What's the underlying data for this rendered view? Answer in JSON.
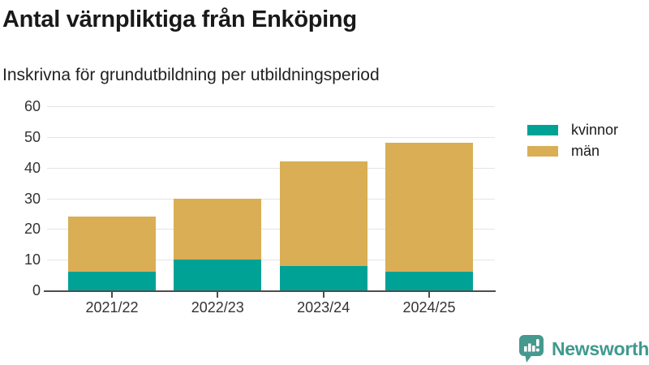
{
  "chart_data": {
    "type": "bar",
    "stacked": true,
    "title": "Antal värnpliktiga från Enköping",
    "subtitle": "Inskrivna för grundutbildning per utbildningsperiod",
    "categories": [
      "2021/22",
      "2022/23",
      "2023/24",
      "2024/25"
    ],
    "series": [
      {
        "name": "kvinnor",
        "color": "#00a296",
        "values": [
          6,
          10,
          8,
          6
        ]
      },
      {
        "name": "män",
        "color": "#d9ae55",
        "values": [
          18,
          20,
          34,
          42
        ]
      }
    ],
    "stack_totals": [
      24,
      30,
      42,
      48
    ],
    "ylim": [
      0,
      60
    ],
    "yticks": [
      0,
      10,
      20,
      30,
      40,
      50,
      60
    ],
    "grid": "horizontal",
    "legend_position": "right-top",
    "colors": {
      "gridline": "#e4e4e4",
      "axis": "#4d4d4d",
      "tick_labels": "#333333",
      "title": "#191919"
    }
  },
  "branding": {
    "logo_text": "Newsworthy",
    "logo_color": "#3f998f",
    "logo_icon": "speech-bubble-with-bar-chart-and-exclamation"
  }
}
